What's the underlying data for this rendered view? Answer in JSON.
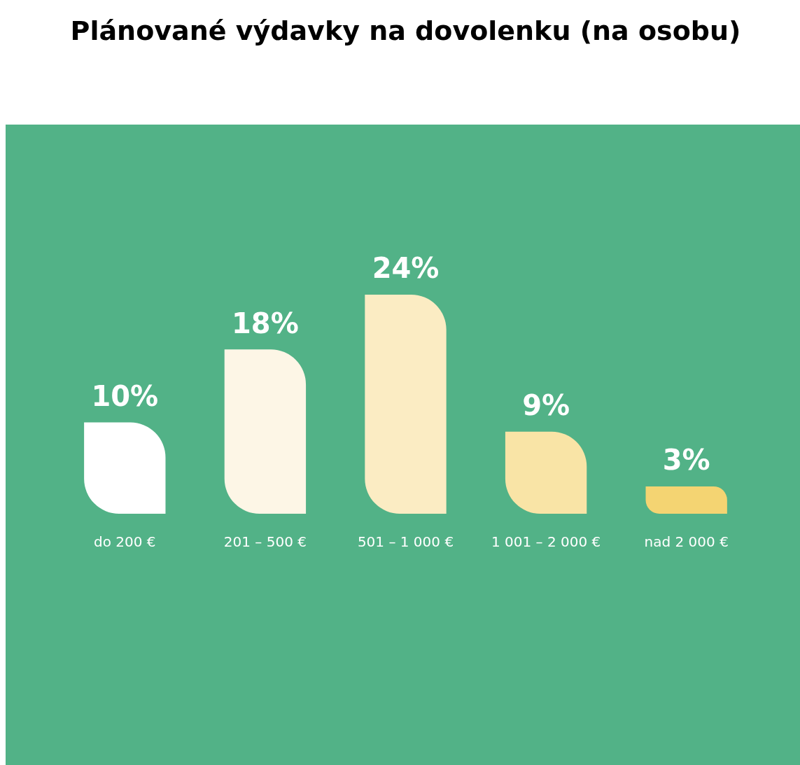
{
  "chart_data": {
    "type": "bar",
    "title": "Plánované výdavky na dovolenku (na osobu)",
    "categories": [
      "do 200 €",
      "201 – 500 €",
      "501 – 1 000 €",
      "1 001 – 2 000 €",
      "nad 2 000 €"
    ],
    "values": [
      10,
      18,
      24,
      9,
      3
    ],
    "colors": [
      "#ffffff",
      "#fdf6e6",
      "#fbecc3",
      "#f9e4a6",
      "#f4d472"
    ],
    "value_labels": [
      "10%",
      "18%",
      "24%",
      "9%",
      "3%"
    ],
    "grid": false,
    "legend": false
  }
}
